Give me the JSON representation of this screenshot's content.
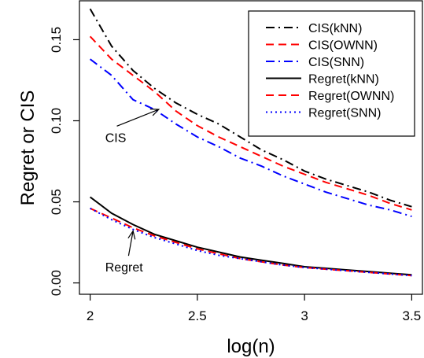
{
  "chart_data": {
    "type": "line",
    "title": "",
    "xlabel": "log(n)",
    "ylabel": "Regret or CIS",
    "xlim": [
      1.95,
      3.55
    ],
    "ylim": [
      -0.007,
      0.174
    ],
    "xticks": [
      2,
      2.5,
      3,
      3.5
    ],
    "xtick_labels": [
      "2",
      "2.5",
      "3",
      "3.5"
    ],
    "yticks": [
      0.0,
      0.05,
      0.1,
      0.15
    ],
    "ytick_labels": [
      "0.00",
      "0.05",
      "0.10",
      "0.15"
    ],
    "legend_position": "top-right",
    "series": [
      {
        "name": "CIS(kNN)",
        "color": "#000000",
        "dash": "dashdot",
        "x": [
          2.0,
          2.1,
          2.2,
          2.3,
          2.4,
          2.5,
          2.6,
          2.7,
          2.8,
          2.9,
          3.0,
          3.1,
          3.2,
          3.3,
          3.4,
          3.5
        ],
        "y": [
          0.169,
          0.146,
          0.131,
          0.12,
          0.111,
          0.104,
          0.098,
          0.09,
          0.082,
          0.076,
          0.069,
          0.064,
          0.06,
          0.056,
          0.051,
          0.047
        ]
      },
      {
        "name": "CIS(OWNN)",
        "color": "#ff0000",
        "dash": "dashed",
        "x": [
          2.0,
          2.1,
          2.2,
          2.3,
          2.4,
          2.5,
          2.6,
          2.7,
          2.8,
          2.9,
          3.0,
          3.1,
          3.2,
          3.3,
          3.4,
          3.5
        ],
        "y": [
          0.152,
          0.138,
          0.128,
          0.118,
          0.106,
          0.097,
          0.09,
          0.084,
          0.078,
          0.072,
          0.067,
          0.062,
          0.058,
          0.054,
          0.049,
          0.045
        ]
      },
      {
        "name": "CIS(SNN)",
        "color": "#0000ff",
        "dash": "dashdot",
        "x": [
          2.0,
          2.1,
          2.2,
          2.3,
          2.4,
          2.5,
          2.6,
          2.7,
          2.8,
          2.9,
          3.0,
          3.1,
          3.2,
          3.3,
          3.4,
          3.5
        ],
        "y": [
          0.138,
          0.128,
          0.113,
          0.107,
          0.098,
          0.09,
          0.084,
          0.077,
          0.072,
          0.066,
          0.061,
          0.056,
          0.052,
          0.048,
          0.045,
          0.041
        ]
      },
      {
        "name": "Regret(kNN)",
        "color": "#000000",
        "dash": "solid",
        "x": [
          2.0,
          2.1,
          2.2,
          2.3,
          2.4,
          2.5,
          2.6,
          2.7,
          2.8,
          2.9,
          3.0,
          3.1,
          3.2,
          3.3,
          3.4,
          3.5
        ],
        "y": [
          0.053,
          0.043,
          0.036,
          0.03,
          0.026,
          0.022,
          0.019,
          0.016,
          0.014,
          0.012,
          0.01,
          0.009,
          0.008,
          0.007,
          0.006,
          0.005
        ]
      },
      {
        "name": "Regret(OWNN)",
        "color": "#ff0000",
        "dash": "dashed",
        "x": [
          2.0,
          2.1,
          2.2,
          2.3,
          2.4,
          2.5,
          2.6,
          2.7,
          2.8,
          2.9,
          3.0,
          3.1,
          3.2,
          3.3,
          3.4,
          3.5
        ],
        "y": [
          0.046,
          0.04,
          0.034,
          0.029,
          0.025,
          0.021,
          0.018,
          0.015,
          0.013,
          0.011,
          0.0095,
          0.0085,
          0.0075,
          0.0065,
          0.0055,
          0.0045
        ]
      },
      {
        "name": "Regret(SNN)",
        "color": "#0000ff",
        "dash": "dotted",
        "x": [
          2.0,
          2.1,
          2.2,
          2.3,
          2.4,
          2.5,
          2.6,
          2.7,
          2.8,
          2.9,
          3.0,
          3.1,
          3.2,
          3.3,
          3.4,
          3.5
        ],
        "y": [
          0.046,
          0.039,
          0.033,
          0.028,
          0.024,
          0.02,
          0.017,
          0.015,
          0.013,
          0.011,
          0.0095,
          0.0085,
          0.0075,
          0.0065,
          0.0055,
          0.0045
        ]
      }
    ],
    "annotations": [
      {
        "text": "CIS",
        "point_to": [
          2.32,
          0.107
        ],
        "text_at": [
          2.07,
          0.087
        ]
      },
      {
        "text": "Regret",
        "point_to": [
          2.2,
          0.032
        ],
        "text_at": [
          2.07,
          0.007
        ]
      }
    ]
  }
}
